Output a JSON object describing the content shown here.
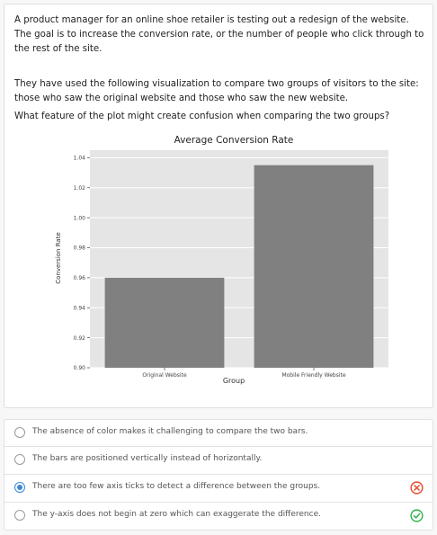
{
  "question": {
    "paragraph1": "A product manager for an online shoe retailer is testing out a redesign of the website. The goal is to increase the conversion rate, or the number of people who click through to the rest of the site.",
    "paragraph2": "They have used the following visualization to compare two groups of visitors to the site: those who saw the original website and those who saw the new website.",
    "paragraph3": "What feature of the plot might create confusion when comparing the two groups?"
  },
  "chart_data": {
    "type": "bar",
    "title": "Average Conversion Rate",
    "xlabel": "Group",
    "ylabel": "Conversion Rate",
    "categories": [
      "Original Website",
      "Mobile Friendly Website"
    ],
    "values": [
      0.96,
      1.035
    ],
    "ylim": [
      0.9,
      1.045
    ],
    "yticks": [
      0.9,
      0.92,
      0.94,
      0.96,
      0.98,
      1.0,
      1.02,
      1.04
    ],
    "ytick_labels": [
      "0.90",
      "0.92",
      "0.94",
      "0.96",
      "0.98",
      "1.00",
      "1.02",
      "1.04"
    ],
    "grid": true,
    "colors": {
      "bar": "#808080",
      "background": "#e5e5e5",
      "grid": "#ffffff"
    }
  },
  "options": [
    {
      "label": "The absence of color makes it challenging to compare the two bars.",
      "selected": false,
      "mark": ""
    },
    {
      "label": "The bars are positioned vertically instead of horizontally.",
      "selected": false,
      "mark": ""
    },
    {
      "label": "There are too few axis ticks to detect a difference between the groups.",
      "selected": true,
      "mark": "x-circle-icon"
    },
    {
      "label": "The y-axis does not begin at zero which can exaggerate the difference.",
      "selected": false,
      "mark": "check-circle-icon"
    }
  ],
  "colors": {
    "accent": "#3a87d6",
    "wrong": "#e8492a",
    "correct": "#2fb24c"
  }
}
